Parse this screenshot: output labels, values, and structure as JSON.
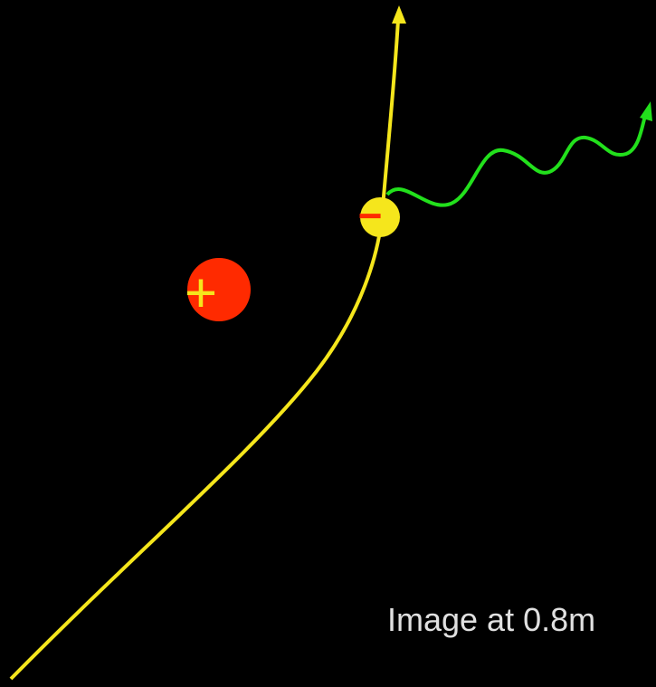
{
  "nucleus": {
    "label": "+"
  },
  "electron": {
    "label": "−"
  },
  "caption": "Image at 0.8m"
}
